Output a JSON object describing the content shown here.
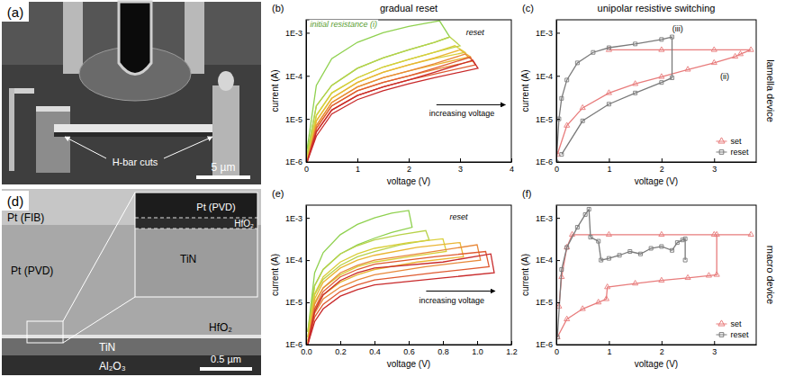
{
  "column_titles": [
    "gradual reset",
    "unipolar resistive switching"
  ],
  "row_labels": [
    "lamella device",
    "macro device"
  ],
  "images": [
    {
      "label": "(a)",
      "annotation": "H-bar cuts",
      "scale_bar": "5 µm"
    },
    {
      "label": "(d)",
      "layers": [
        "Pt (FIB)",
        "Pt (PVD)",
        "HfO₂",
        "TiN",
        "Al₂O₃"
      ],
      "inset": [
        "Pt (PVD)",
        "HfO₂",
        "TiN"
      ],
      "scale_bar": "0.5 µm"
    }
  ],
  "chart_data": [
    {
      "type": "line",
      "label": "(b)",
      "x_label": "voltage (V)",
      "y_label": "current (A)",
      "log": "y",
      "grid": false,
      "xlim": [
        0,
        4
      ],
      "xticks": [
        0,
        1,
        2,
        3,
        4
      ],
      "ylim": [
        1e-06,
        0.002
      ],
      "yticks": [
        {
          "value": 1e-06,
          "label": "1E-6"
        },
        {
          "value": 1e-05,
          "label": "1E-5"
        },
        {
          "value": 0.0001,
          "label": "1E-4"
        },
        {
          "value": 0.001,
          "label": "1E-3"
        }
      ],
      "annotations": [
        "initial resistance (i)",
        "reset",
        "increasing voltage"
      ],
      "series": [
        {
          "color": "#8fd14f",
          "x": [
            0.02,
            0.2,
            0.5,
            1.0,
            1.5,
            2.0,
            2.5,
            2.6,
            2.8,
            2.5,
            2.0,
            1.5,
            1.0,
            0.5,
            0.2,
            0.02
          ],
          "values": [
            2e-06,
            6e-05,
            0.00025,
            0.0006,
            0.001,
            0.0014,
            0.0018,
            0.0019,
            0.0008,
            0.0006,
            0.0004,
            0.00026,
            0.00015,
            6e-05,
            2e-05,
            1.5e-06
          ]
        },
        {
          "color": "#b8d24a",
          "x": [
            0.02,
            0.2,
            0.5,
            1.0,
            1.5,
            2.0,
            2.5,
            2.8,
            3.0,
            2.5,
            2.0,
            1.5,
            1.0,
            0.5,
            0.2,
            0.02
          ],
          "values": [
            1.5e-06,
            2e-05,
            6e-05,
            0.00015,
            0.00026,
            0.0004,
            0.0006,
            0.0008,
            0.0005,
            0.00035,
            0.00024,
            0.00016,
            9e-05,
            4e-05,
            1.2e-05,
            1.2e-06
          ]
        },
        {
          "color": "#d9cf3a",
          "x": [
            0.02,
            0.2,
            0.5,
            1.0,
            1.5,
            2.0,
            2.5,
            2.9,
            3.1,
            2.5,
            2.0,
            1.5,
            1.0,
            0.5,
            0.2,
            0.02
          ],
          "values": [
            1.2e-06,
            1.2e-05,
            4e-05,
            9e-05,
            0.00016,
            0.00024,
            0.00035,
            0.0005,
            0.00035,
            0.00025,
            0.00018,
            0.00012,
            7e-05,
            3e-05,
            9e-06,
            1e-06
          ]
        },
        {
          "color": "#eab534",
          "x": [
            0.02,
            0.2,
            0.5,
            1.0,
            1.5,
            2.0,
            2.5,
            3.0,
            3.2,
            2.5,
            2.0,
            1.5,
            1.0,
            0.5,
            0.2,
            0.02
          ],
          "values": [
            1e-06,
            9e-06,
            3e-05,
            7e-05,
            0.00012,
            0.00018,
            0.00026,
            0.0004,
            0.00028,
            0.00018,
            0.00013,
            9e-05,
            5.5e-05,
            2.4e-05,
            7e-06,
            1e-06
          ]
        },
        {
          "color": "#e8893a",
          "x": [
            0.02,
            0.2,
            0.5,
            1.0,
            1.5,
            2.0,
            2.5,
            3.1,
            3.25,
            2.5,
            2.0,
            1.5,
            1.0,
            0.5,
            0.2,
            0.02
          ],
          "values": [
            1e-06,
            7e-06,
            2.4e-05,
            5.5e-05,
            9e-05,
            0.00013,
            0.00019,
            0.00032,
            0.00022,
            0.00014,
            0.0001,
            7e-05,
            4.5e-05,
            2e-05,
            6e-06,
            1e-06
          ]
        },
        {
          "color": "#df5a30",
          "x": [
            0.02,
            0.2,
            0.5,
            1.0,
            1.5,
            2.0,
            2.5,
            3.2,
            3.3,
            2.5,
            2.0,
            1.5,
            1.0,
            0.5,
            0.2,
            0.02
          ],
          "values": [
            1e-06,
            6e-06,
            2e-05,
            4.5e-05,
            7e-05,
            0.0001,
            0.00015,
            0.00027,
            0.00018,
            0.00011,
            8e-05,
            5.5e-05,
            3.5e-05,
            1.6e-05,
            5e-06,
            1e-06
          ]
        },
        {
          "color": "#c8292a",
          "x": [
            0.02,
            0.2,
            0.5,
            1.0,
            1.5,
            2.0,
            2.5,
            3.25,
            3.35,
            2.5,
            2.0,
            1.5,
            1.0,
            0.5,
            0.2,
            0.02
          ],
          "values": [
            1e-06,
            5e-06,
            1.6e-05,
            3.5e-05,
            5.5e-05,
            8e-05,
            0.00012,
            0.00023,
            0.00015,
            9e-05,
            6.5e-05,
            4.5e-05,
            2.8e-05,
            1.3e-05,
            4e-06,
            1e-06
          ]
        }
      ]
    },
    {
      "type": "line",
      "label": "(c)",
      "x_label": "voltage (V)",
      "y_label": "current (A)",
      "log": "y",
      "grid": false,
      "legend": "lower right",
      "xlim": [
        0,
        3.8
      ],
      "xticks": [
        0,
        1,
        2,
        3
      ],
      "ylim": [
        1e-06,
        0.002
      ],
      "yticks": [
        {
          "value": 1e-06,
          "label": "1E-6"
        },
        {
          "value": 1e-05,
          "label": "1E-5"
        },
        {
          "value": 0.0001,
          "label": "1E-4"
        },
        {
          "value": 0.001,
          "label": "1E-3"
        }
      ],
      "annotations": [
        "(ii)",
        "(iii)"
      ],
      "series": [
        {
          "name": "set",
          "color": "#e87c7c",
          "marker": "triangle",
          "x": [
            0.02,
            0.2,
            0.5,
            1.0,
            1.5,
            2.0,
            2.5,
            3.0,
            3.4,
            3.5,
            3.7,
            3.0,
            2.0,
            1.0
          ],
          "values": [
            1.5e-06,
            7e-06,
            1.8e-05,
            4e-05,
            6.5e-05,
            9.5e-05,
            0.00014,
            0.0002,
            0.00028,
            0.00032,
            0.0004,
            0.0004,
            0.0004,
            0.0004
          ]
        },
        {
          "name": "reset",
          "color": "#7a7a7a",
          "marker": "square",
          "x": [
            0.0,
            0.05,
            0.1,
            0.2,
            0.4,
            0.7,
            1.0,
            1.5,
            2.0,
            2.2,
            2.2,
            2.0,
            1.5,
            1.0,
            0.5,
            0.1
          ],
          "values": [
            1e-06,
            1e-05,
            3e-05,
            8e-05,
            0.0002,
            0.00035,
            0.00045,
            0.00055,
            0.0007,
            0.0008,
            9e-05,
            7e-05,
            4e-05,
            2.2e-05,
            9e-06,
            1.5e-06
          ]
        }
      ]
    },
    {
      "type": "line",
      "label": "(e)",
      "x_label": "voltage (V)",
      "y_label": "current (A)",
      "log": "y",
      "grid": false,
      "xlim": [
        0,
        1.2
      ],
      "xticks": [
        {
          "value": 0,
          "label": "0.0"
        },
        0.2,
        0.4,
        0.6,
        0.8,
        {
          "value": 1,
          "label": "1.0"
        },
        1.2
      ],
      "ylim": [
        1e-06,
        0.002
      ],
      "yticks": [
        {
          "value": 1e-06,
          "label": "1E-6"
        },
        {
          "value": 1e-05,
          "label": "1E-5"
        },
        {
          "value": 0.0001,
          "label": "1E-4"
        },
        {
          "value": 0.001,
          "label": "1E-3"
        }
      ],
      "annotations": [
        "reset",
        "increasing voltage"
      ],
      "series": [
        {
          "color": "#8fd14f",
          "x": [
            0.01,
            0.05,
            0.1,
            0.2,
            0.3,
            0.4,
            0.5,
            0.6,
            0.62,
            0.5,
            0.4,
            0.3,
            0.2,
            0.1,
            0.05,
            0.01
          ],
          "values": [
            2e-06,
            5e-05,
            0.00015,
            0.0004,
            0.0007,
            0.001,
            0.0013,
            0.0015,
            0.0006,
            0.00045,
            0.00033,
            0.00023,
            0.00014,
            6e-05,
            2.5e-05,
            2e-06
          ]
        },
        {
          "color": "#b8d24a",
          "x": [
            0.01,
            0.05,
            0.1,
            0.2,
            0.3,
            0.4,
            0.55,
            0.7,
            0.72,
            0.55,
            0.4,
            0.3,
            0.2,
            0.1,
            0.05,
            0.01
          ],
          "values": [
            2e-06,
            2.5e-05,
            6e-05,
            0.00014,
            0.00022,
            0.0003,
            0.0004,
            0.0005,
            0.0003,
            0.00023,
            0.00016,
            0.00012,
            7.5e-05,
            3.5e-05,
            1.5e-05,
            1.5e-06
          ]
        },
        {
          "color": "#d9cf3a",
          "x": [
            0.01,
            0.05,
            0.1,
            0.2,
            0.3,
            0.4,
            0.6,
            0.8,
            0.82,
            0.6,
            0.4,
            0.3,
            0.2,
            0.1,
            0.05,
            0.01
          ],
          "values": [
            1.5e-06,
            1.6e-05,
            4e-05,
            9e-05,
            0.00014,
            0.00019,
            0.00026,
            0.00032,
            0.00016,
            0.00012,
            9e-05,
            7e-05,
            4.5e-05,
            2.2e-05,
            1e-05,
            1.2e-06
          ]
        },
        {
          "color": "#eab534",
          "x": [
            0.01,
            0.05,
            0.1,
            0.2,
            0.3,
            0.4,
            0.65,
            0.9,
            0.92,
            0.65,
            0.4,
            0.3,
            0.2,
            0.1,
            0.05,
            0.01
          ],
          "values": [
            1.2e-06,
            1.2e-05,
            3e-05,
            6.5e-05,
            0.0001,
            0.00013,
            0.0002,
            0.00026,
            0.00012,
            9e-05,
            6e-05,
            4.5e-05,
            3e-05,
            1.5e-05,
            7e-06,
            1e-06
          ]
        },
        {
          "color": "#e8893a",
          "x": [
            0.01,
            0.05,
            0.1,
            0.2,
            0.3,
            0.4,
            0.7,
            1.0,
            1.02,
            0.7,
            0.4,
            0.3,
            0.2,
            0.1,
            0.05,
            0.01
          ],
          "values": [
            1.1e-06,
            9e-06,
            2.2e-05,
            5e-05,
            7.5e-05,
            0.0001,
            0.00015,
            0.00023,
            0.0001,
            7e-05,
            4.5e-05,
            3.4e-05,
            2.3e-05,
            1.2e-05,
            5.5e-06,
            1e-06
          ]
        },
        {
          "color": "#df5a30",
          "x": [
            0.01,
            0.05,
            0.1,
            0.2,
            0.3,
            0.4,
            0.75,
            1.05,
            1.07,
            0.75,
            0.4,
            0.3,
            0.2,
            0.1,
            0.05,
            0.01
          ],
          "values": [
            1e-06,
            7e-06,
            1.8e-05,
            4e-05,
            6e-05,
            8e-05,
            0.00012,
            0.00016,
            7e-05,
            5e-05,
            3.4e-05,
            2.6e-05,
            1.8e-05,
            9e-06,
            4.5e-06,
            1e-06
          ]
        },
        {
          "color": "#c8292a",
          "x": [
            0.01,
            0.05,
            0.1,
            0.2,
            0.3,
            0.4,
            0.8,
            1.08,
            1.1,
            0.8,
            0.4,
            0.3,
            0.2,
            0.1,
            0.05,
            0.01
          ],
          "values": [
            1e-06,
            6e-06,
            1.5e-05,
            3.3e-05,
            5e-05,
            6.5e-05,
            9e-05,
            0.00014,
            5e-05,
            3.8e-05,
            2.6e-05,
            2e-05,
            1.4e-05,
            7e-06,
            3.5e-06,
            1e-06
          ]
        }
      ]
    },
    {
      "type": "line",
      "label": "(f)",
      "x_label": "voltage (V)",
      "y_label": "current (A)",
      "log": "y",
      "grid": false,
      "legend": "lower right",
      "xlim": [
        0,
        3.8
      ],
      "xticks": [
        0,
        1,
        2,
        3
      ],
      "ylim": [
        1e-06,
        0.002
      ],
      "yticks": [
        {
          "value": 1e-06,
          "label": "1E-6"
        },
        {
          "value": 1e-05,
          "label": "1E-5"
        },
        {
          "value": 0.0001,
          "label": "1E-4"
        },
        {
          "value": 0.001,
          "label": "1E-3"
        }
      ],
      "series": [
        {
          "name": "set",
          "color": "#e87c7c",
          "marker": "triangle",
          "x": [
            0.02,
            0.2,
            0.5,
            0.8,
            0.95,
            0.97,
            1.5,
            2.0,
            2.5,
            2.9,
            3.05,
            3.05,
            3.7,
            3.0,
            2.0,
            1.0,
            0.3,
            0.2,
            0.1,
            0.05
          ],
          "values": [
            1.5e-06,
            4e-06,
            7e-06,
            1e-05,
            1.2e-05,
            2.3e-05,
            2.8e-05,
            3.3e-05,
            3.8e-05,
            4.3e-05,
            4.5e-05,
            0.0004,
            0.0004,
            0.0004,
            0.0004,
            0.0004,
            0.0004,
            0.0002,
            4e-05,
            8e-06
          ]
        },
        {
          "name": "reset",
          "color": "#7a7a7a",
          "marker": "square",
          "x": [
            0.02,
            0.1,
            0.2,
            0.4,
            0.55,
            0.62,
            0.65,
            0.8,
            0.85,
            1.0,
            1.2,
            1.4,
            1.6,
            1.8,
            2.0,
            2.2,
            2.3,
            2.4,
            2.45,
            2.45
          ],
          "values": [
            1.5e-06,
            6e-05,
            0.0002,
            0.0006,
            0.0012,
            0.0016,
            0.00035,
            0.00028,
            0.0001,
            0.00011,
            0.00013,
            0.00016,
            0.00014,
            0.00019,
            0.00021,
            0.00017,
            0.00026,
            0.0003,
            0.00032,
            0.0001
          ]
        }
      ]
    }
  ]
}
